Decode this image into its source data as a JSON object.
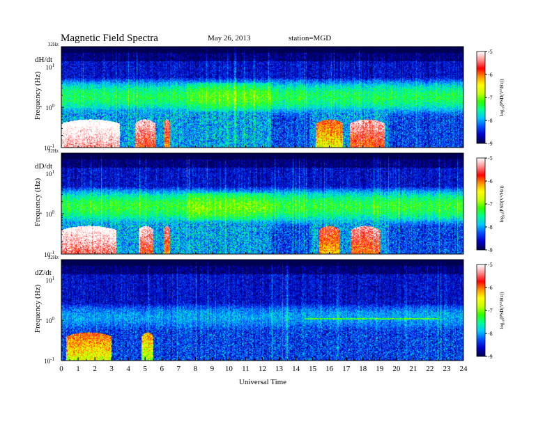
{
  "header": {
    "title": "Magnetic Field Spectra",
    "date": "May 26, 2013",
    "station": "station=MGD"
  },
  "chart_data": {
    "type": "heatmap",
    "title": "Magnetic Field Spectra",
    "xlabel": "Universal Time",
    "x_ticks": [
      "0",
      "1",
      "2",
      "3",
      "4",
      "5",
      "6",
      "7",
      "8",
      "9",
      "10",
      "11",
      "12",
      "13",
      "14",
      "15",
      "16",
      "17",
      "18",
      "19",
      "20",
      "21",
      "22",
      "23",
      "24"
    ],
    "xlim": [
      0,
      24
    ],
    "ylabel": "Frequency (Hz)",
    "y_scale": "log",
    "ylim": [
      0.1,
      32
    ],
    "y_top_label": "32Hz",
    "y_tick_base": "10",
    "y_tick_exponents": [
      "1",
      "0",
      "-1"
    ],
    "colorbar": {
      "label": "log₁₀(PSD(V²/Hz))",
      "range": [
        -9,
        -5
      ],
      "ticks": [
        "-5",
        "-6",
        "-7",
        "-8",
        "-9"
      ],
      "colormap": [
        "#000050",
        "#0000c8",
        "#0050ff",
        "#00c8ff",
        "#00ff96",
        "#32ff00",
        "#c8ff00",
        "#ffff00",
        "#ff9600",
        "#ff0000",
        "#ff8c8c",
        "#ffffff"
      ]
    },
    "panels": [
      {
        "name": "dH/dt",
        "band_center_hz": 1.8,
        "band_level": -7.4,
        "band_mod_hours": [
          [
            7.5,
            12.5,
            0.25
          ]
        ],
        "low_freq_events": [
          {
            "t": [
              0,
              3.5
            ],
            "level": -5.3
          },
          {
            "t": [
              4.4,
              5.6
            ],
            "level": -5.8
          },
          {
            "t": [
              6.1,
              6.5
            ],
            "level": -6.1
          },
          {
            "t": [
              15.2,
              16.8
            ],
            "level": -6.6
          },
          {
            "t": [
              17.2,
              19.3
            ],
            "level": -5.9
          }
        ],
        "quiet_hours": [
          [
            12.5,
            14.8
          ],
          [
            19.5,
            24
          ]
        ]
      },
      {
        "name": "dD/dt",
        "band_center_hz": 1.5,
        "band_level": -7.3,
        "band_mod_hours": [
          [
            7.5,
            12.5,
            0.25
          ]
        ],
        "low_freq_events": [
          {
            "t": [
              0,
              3.3
            ],
            "level": -5.5
          },
          {
            "t": [
              4.6,
              5.5
            ],
            "level": -5.8
          },
          {
            "t": [
              6.1,
              6.5
            ],
            "level": -6.1
          },
          {
            "t": [
              15.4,
              16.6
            ],
            "level": -6.3
          },
          {
            "t": [
              17.3,
              19.0
            ],
            "level": -6.0
          }
        ],
        "quiet_hours": [
          [
            12.5,
            14.8
          ],
          [
            19.5,
            24
          ]
        ]
      },
      {
        "name": "dZ/dt",
        "band_center_hz": 1.2,
        "band_level": -8.0,
        "band_mod_hours": [],
        "line_freq_hz": 1.1,
        "line_hours": [
          14.5,
          22.5
        ],
        "low_freq_events": [
          {
            "t": [
              0.3,
              3.0
            ],
            "level": -6.7
          },
          {
            "t": [
              4.8,
              5.5
            ],
            "level": -6.9
          }
        ],
        "quiet_hours": [
          [
            0,
            24
          ]
        ]
      }
    ]
  }
}
